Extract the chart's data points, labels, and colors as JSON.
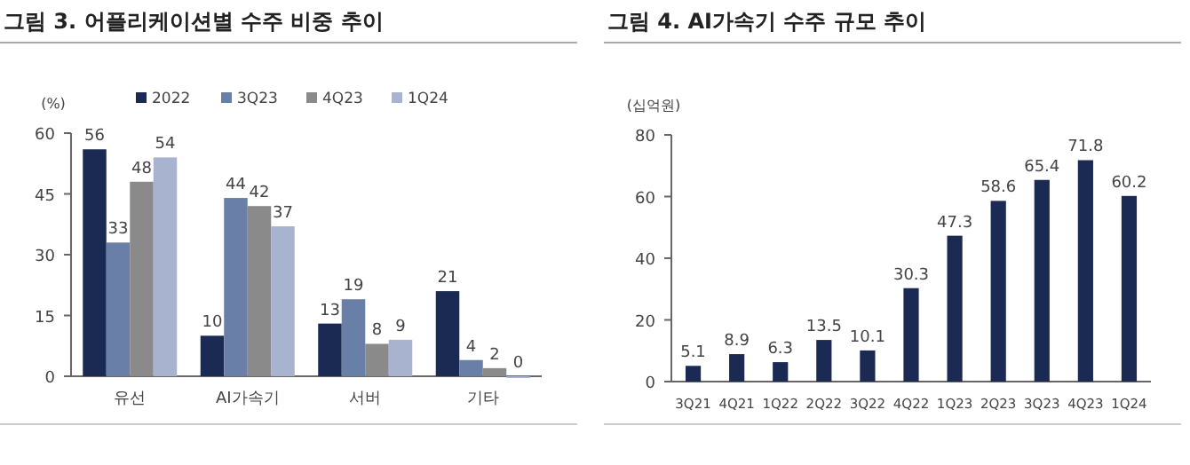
{
  "chart_data": [
    {
      "type": "bar",
      "title": "그림 3. 어플리케이션별 수주 비중 추이",
      "ylabel": "(%)",
      "categories": [
        "유선",
        "AI가속기",
        "서버",
        "기타"
      ],
      "series": [
        {
          "name": "2022",
          "color": "#1b2a52",
          "values": [
            56,
            10,
            13,
            21
          ]
        },
        {
          "name": "3Q23",
          "color": "#6a7fa8",
          "values": [
            33,
            44,
            19,
            4
          ]
        },
        {
          "name": "4Q23",
          "color": "#8a8a8a",
          "values": [
            48,
            42,
            8,
            2
          ]
        },
        {
          "name": "1Q24",
          "color": "#a7b3cf",
          "values": [
            54,
            37,
            9,
            0
          ]
        }
      ],
      "ylim": [
        0,
        60
      ],
      "yticks": [
        0,
        15,
        30,
        45,
        60
      ],
      "data_labels": true,
      "legend": "top",
      "grid": false
    },
    {
      "type": "bar",
      "title": "그림 4. AI가속기 수주 규모 추이",
      "ylabel": "(십억원)",
      "categories": [
        "3Q21",
        "4Q21",
        "1Q22",
        "2Q22",
        "3Q22",
        "4Q22",
        "1Q23",
        "2Q23",
        "3Q23",
        "4Q23",
        "1Q24"
      ],
      "series": [
        {
          "color": "#1b2a52",
          "values": [
            5.1,
            8.9,
            6.3,
            13.5,
            10.1,
            30.3,
            47.3,
            58.6,
            65.4,
            71.8,
            60.2
          ]
        }
      ],
      "ylim": [
        0,
        80
      ],
      "yticks": [
        0,
        20,
        40,
        60,
        80
      ],
      "data_labels": true,
      "legend": false,
      "grid": false
    }
  ]
}
